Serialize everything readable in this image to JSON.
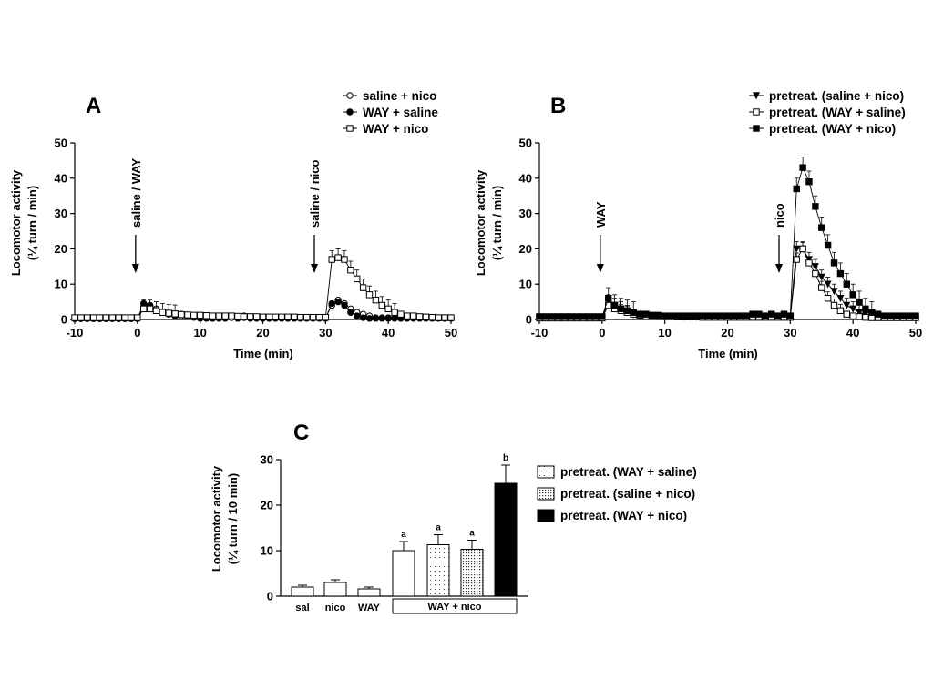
{
  "chart_data": [
    {
      "panel": "A",
      "type": "line",
      "ylabel": [
        "Locomotor activity",
        "(¼ turn / min)"
      ],
      "xlabel": "Time (min)",
      "xlim": [
        -10,
        50
      ],
      "ylim": [
        0,
        50
      ],
      "xticks": [
        -10,
        0,
        10,
        20,
        30,
        40,
        50
      ],
      "yticks": [
        0,
        10,
        20,
        30,
        40,
        50
      ],
      "annotations": [
        {
          "text": "saline / WAY",
          "x": 0
        },
        {
          "text": "saline / nico",
          "x": 28.5
        }
      ],
      "legend_position": "top-right",
      "series": [
        {
          "name": "saline + nico",
          "marker": "circle-open",
          "x": [
            -10,
            -9,
            -8,
            -7,
            -6,
            -5,
            -4,
            -3,
            -2,
            -1,
            0,
            1,
            2,
            3,
            4,
            5,
            6,
            7,
            8,
            9,
            10,
            11,
            12,
            13,
            14,
            15,
            16,
            17,
            18,
            19,
            20,
            21,
            22,
            23,
            24,
            25,
            26,
            27,
            28,
            29,
            30,
            31,
            32,
            33,
            34,
            35,
            36,
            37,
            38,
            39,
            40,
            41,
            42,
            43,
            44,
            45,
            46,
            47,
            48,
            49,
            50
          ],
          "y": [
            0.3,
            0.3,
            0.3,
            0.3,
            0.3,
            0.3,
            0.3,
            0.3,
            0.3,
            0.3,
            0.3,
            3,
            4,
            3,
            2,
            1.5,
            1,
            1,
            0.8,
            0.6,
            0.5,
            0.5,
            0.5,
            0.5,
            0.5,
            0.5,
            0.5,
            0.5,
            0.5,
            0.5,
            0.5,
            0.5,
            0.5,
            0.5,
            0.5,
            0.5,
            0.5,
            0.5,
            0.5,
            0.5,
            0.5,
            4,
            5.5,
            4.5,
            3,
            2,
            1.5,
            1,
            0.5,
            0.5,
            0.5,
            0.5,
            0.5,
            0.5,
            0.5,
            0.5,
            0.5,
            0.5,
            0.5,
            0.5,
            0.5
          ],
          "err": 0.6
        },
        {
          "name": "WAY + saline",
          "marker": "circle-filled",
          "x": [
            -10,
            -9,
            -8,
            -7,
            -6,
            -5,
            -4,
            -3,
            -2,
            -1,
            0,
            1,
            2,
            3,
            4,
            5,
            6,
            7,
            8,
            9,
            10,
            11,
            12,
            13,
            14,
            15,
            16,
            17,
            18,
            19,
            20,
            21,
            22,
            23,
            24,
            25,
            26,
            27,
            28,
            29,
            30,
            31,
            32,
            33,
            34,
            35,
            36,
            37,
            38,
            39,
            40,
            41,
            42,
            43,
            44,
            45,
            46,
            47,
            48,
            49,
            50
          ],
          "y": [
            0.2,
            0.2,
            0.2,
            0.2,
            0.2,
            0.2,
            0.2,
            0.2,
            0.2,
            0.2,
            0.2,
            4.5,
            4,
            2.5,
            2,
            1.5,
            1,
            1.5,
            1,
            0.6,
            0.3,
            0.3,
            0.3,
            0.3,
            0.3,
            1,
            0.3,
            1,
            0.3,
            0.3,
            0.3,
            0.3,
            0.3,
            0.3,
            0.3,
            0.3,
            0.3,
            0.3,
            0.3,
            0.3,
            0.3,
            4.5,
            5,
            4,
            2,
            1,
            0.5,
            0.3,
            0.3,
            0.3,
            0.3,
            0.3,
            0.3,
            0.3,
            0.3,
            0.3,
            0.3,
            0.3,
            0.3,
            0.3,
            0.3
          ],
          "err": 0.6
        },
        {
          "name": "WAY + nico",
          "marker": "square-open",
          "x": [
            -10,
            -9,
            -8,
            -7,
            -6,
            -5,
            -4,
            -3,
            -2,
            -1,
            0,
            1,
            2,
            3,
            4,
            5,
            6,
            7,
            8,
            9,
            10,
            11,
            12,
            13,
            14,
            15,
            16,
            17,
            18,
            19,
            20,
            21,
            22,
            23,
            24,
            25,
            26,
            27,
            28,
            29,
            30,
            31,
            32,
            33,
            34,
            35,
            36,
            37,
            38,
            39,
            40,
            41,
            42,
            43,
            44,
            45,
            46,
            47,
            48,
            49,
            50
          ],
          "y": [
            0.5,
            0.5,
            0.5,
            0.5,
            0.5,
            0.5,
            0.5,
            0.5,
            0.5,
            0.5,
            0.5,
            3,
            3,
            2.5,
            2,
            1.8,
            1.6,
            1.4,
            1.3,
            1.2,
            1.2,
            1.1,
            1,
            1,
            1,
            1,
            0.9,
            0.8,
            0.8,
            0.8,
            0.7,
            0.7,
            0.7,
            0.7,
            0.7,
            0.7,
            0.6,
            0.6,
            0.6,
            0.6,
            0.6,
            17,
            17.5,
            17,
            14,
            11.5,
            9,
            7,
            5.5,
            4,
            3,
            2,
            1.5,
            1,
            1,
            0.8,
            0.7,
            0.6,
            0.5,
            0.5,
            0.5
          ],
          "err": 2.5
        }
      ]
    },
    {
      "panel": "B",
      "type": "line",
      "ylabel": [
        "Locomotor activity",
        "(¼ turn / min)"
      ],
      "xlabel": "Time (min)",
      "xlim": [
        -10,
        50
      ],
      "ylim": [
        0,
        50
      ],
      "xticks": [
        -10,
        0,
        10,
        20,
        30,
        40,
        50
      ],
      "yticks": [
        0,
        10,
        20,
        30,
        40,
        50
      ],
      "annotations": [
        {
          "text": "WAY",
          "x": 0
        },
        {
          "text": "nico",
          "x": 28.5
        }
      ],
      "legend_position": "top-right",
      "series": [
        {
          "name": "pretreat. (saline + nico)",
          "marker": "triangle-down-filled",
          "x": [
            -10,
            -9,
            -8,
            -7,
            -6,
            -5,
            -4,
            -3,
            -2,
            -1,
            0,
            1,
            2,
            3,
            4,
            5,
            6,
            7,
            8,
            9,
            10,
            11,
            12,
            13,
            14,
            15,
            16,
            17,
            18,
            19,
            20,
            21,
            22,
            23,
            24,
            25,
            26,
            27,
            28,
            29,
            30,
            31,
            32,
            33,
            34,
            35,
            36,
            37,
            38,
            39,
            40,
            41,
            42,
            43,
            44,
            45,
            46,
            47,
            48,
            49,
            50
          ],
          "y": [
            0.5,
            0.5,
            0.5,
            0.5,
            0.5,
            0.5,
            0.5,
            0.5,
            0.5,
            0.5,
            0.5,
            5,
            4,
            3,
            2,
            1.5,
            1,
            1,
            1,
            1,
            0.8,
            0.8,
            0.8,
            0.7,
            0.7,
            0.7,
            0.7,
            0.7,
            0.7,
            0.7,
            0.7,
            0.7,
            0.7,
            0.7,
            0.7,
            0.7,
            0.7,
            0.7,
            0.7,
            0.7,
            0.7,
            20,
            20,
            17,
            15,
            12,
            10,
            8,
            6,
            4,
            3,
            2,
            1.5,
            1,
            0.8,
            0.7,
            0.6,
            0.6,
            0.5,
            0.5,
            0.5
          ],
          "err": 2
        },
        {
          "name": "pretreat. (WAY + saline)",
          "marker": "square-open",
          "x": [
            -10,
            -9,
            -8,
            -7,
            -6,
            -5,
            -4,
            -3,
            -2,
            -1,
            0,
            1,
            2,
            3,
            4,
            5,
            6,
            7,
            8,
            9,
            10,
            11,
            12,
            13,
            14,
            15,
            16,
            17,
            18,
            19,
            20,
            21,
            22,
            23,
            24,
            25,
            26,
            27,
            28,
            29,
            30,
            31,
            32,
            33,
            34,
            35,
            36,
            37,
            38,
            39,
            40,
            41,
            42,
            43,
            44,
            45,
            46,
            47,
            48,
            49,
            50
          ],
          "y": [
            0.4,
            0.4,
            0.4,
            0.4,
            0.4,
            0.4,
            0.4,
            0.4,
            0.4,
            0.4,
            0.4,
            4,
            3,
            2.5,
            2,
            1.5,
            1.2,
            1,
            1,
            0.8,
            0.8,
            0.8,
            0.7,
            0.7,
            0.7,
            0.7,
            0.6,
            0.6,
            0.6,
            0.6,
            0.6,
            0.6,
            0.6,
            0.6,
            0.6,
            0.6,
            0.6,
            0.6,
            0.6,
            0.6,
            0.6,
            17,
            20,
            16,
            13,
            9,
            6,
            4,
            2.5,
            1.5,
            1,
            0.8,
            0.6,
            0.5,
            0.5,
            0.5,
            0.5,
            0.5,
            0.5,
            0.5,
            0.5
          ],
          "err": 1.8
        },
        {
          "name": "pretreat. (WAY + nico)",
          "marker": "square-filled",
          "x": [
            -10,
            -9,
            -8,
            -7,
            -6,
            -5,
            -4,
            -3,
            -2,
            -1,
            0,
            1,
            2,
            3,
            4,
            5,
            6,
            7,
            8,
            9,
            10,
            11,
            12,
            13,
            14,
            15,
            16,
            17,
            18,
            19,
            20,
            21,
            22,
            23,
            24,
            25,
            26,
            27,
            28,
            29,
            30,
            31,
            32,
            33,
            34,
            35,
            36,
            37,
            38,
            39,
            40,
            41,
            42,
            43,
            44,
            45,
            46,
            47,
            48,
            49,
            50
          ],
          "y": [
            0.8,
            0.8,
            0.8,
            0.8,
            0.8,
            0.8,
            0.8,
            0.8,
            0.8,
            0.8,
            0.8,
            6,
            4,
            3,
            2.5,
            2,
            1.5,
            1.5,
            1.2,
            1.2,
            1,
            1,
            1,
            1,
            1,
            1,
            1,
            1,
            1,
            1,
            1,
            1,
            1,
            1,
            1.5,
            1.5,
            1,
            1.5,
            1,
            1.5,
            1,
            37,
            43,
            39,
            32,
            26,
            21,
            16,
            13,
            10,
            7,
            5,
            3,
            2,
            1.5,
            1,
            1,
            1,
            1,
            1,
            1
          ],
          "err": 3
        }
      ]
    },
    {
      "panel": "C",
      "type": "bar",
      "ylabel": [
        "Locomotor activity",
        "(¼ turn / 10 min)"
      ],
      "ylim": [
        0,
        30
      ],
      "yticks": [
        0,
        10,
        20,
        30
      ],
      "categories": [
        "sal",
        "nico",
        "WAY",
        "",
        "",
        "",
        ""
      ],
      "group_label": "WAY + nico",
      "values": [
        2,
        3,
        1.6,
        10,
        11.3,
        10.3,
        24.8
      ],
      "errors": [
        0.4,
        0.6,
        0.4,
        2,
        2.2,
        2,
        4
      ],
      "fills": [
        "white",
        "white",
        "white",
        "white",
        "dots-sparse",
        "dots-dense",
        "black"
      ],
      "sig": [
        "",
        "",
        "",
        "a",
        "a",
        "a",
        "b"
      ],
      "legend": [
        {
          "name": "pretreat. (WAY + saline)",
          "fill": "dots-sparse"
        },
        {
          "name": "pretreat. (saline + nico)",
          "fill": "dots-dense"
        },
        {
          "name": "pretreat. (WAY + nico)",
          "fill": "black"
        }
      ]
    }
  ]
}
